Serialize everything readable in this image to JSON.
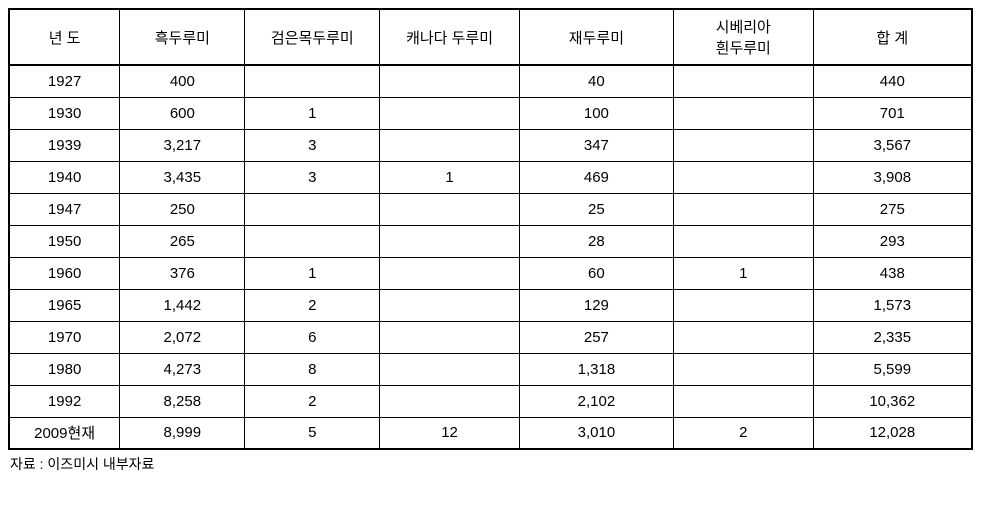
{
  "table": {
    "columns": [
      "년 도",
      "흑두루미",
      "검은목두루미",
      "캐나다 두루미",
      "재두루미",
      "시베리아\n흰두루미",
      "합 계"
    ],
    "rows": [
      [
        "1927",
        "400",
        "",
        "",
        "40",
        "",
        "440"
      ],
      [
        "1930",
        "600",
        "1",
        "",
        "100",
        "",
        "701"
      ],
      [
        "1939",
        "3,217",
        "3",
        "",
        "347",
        "",
        "3,567"
      ],
      [
        "1940",
        "3,435",
        "3",
        "1",
        "469",
        "",
        "3,908"
      ],
      [
        "1947",
        "250",
        "",
        "",
        "25",
        "",
        "275"
      ],
      [
        "1950",
        "265",
        "",
        "",
        "28",
        "",
        "293"
      ],
      [
        "1960",
        "376",
        "1",
        "",
        "60",
        "1",
        "438"
      ],
      [
        "1965",
        "1,442",
        "2",
        "",
        "129",
        "",
        "1,573"
      ],
      [
        "1970",
        "2,072",
        "6",
        "",
        "257",
        "",
        "2,335"
      ],
      [
        "1980",
        "4,273",
        "8",
        "",
        "1,318",
        "",
        "5,599"
      ],
      [
        "1992",
        "8,258",
        "2",
        "",
        "2,102",
        "",
        "10,362"
      ],
      [
        "2009현재",
        "8,999",
        "5",
        "12",
        "3,010",
        "2",
        "12,028"
      ]
    ]
  },
  "footnote": "자료 : 이즈미시 내부자료",
  "styling": {
    "border_color": "#000000",
    "outer_border_width": 2,
    "inner_border_width": 1,
    "header_separator_width": 2,
    "background_color": "#ffffff",
    "font_size_cells": 15,
    "font_size_footnote": 14,
    "column_widths_pct": [
      11.5,
      13,
      14,
      14.5,
      16,
      14.5,
      16.5
    ],
    "row_height_header": 56,
    "row_height_body": 32,
    "font_family": "Malgun Gothic"
  }
}
